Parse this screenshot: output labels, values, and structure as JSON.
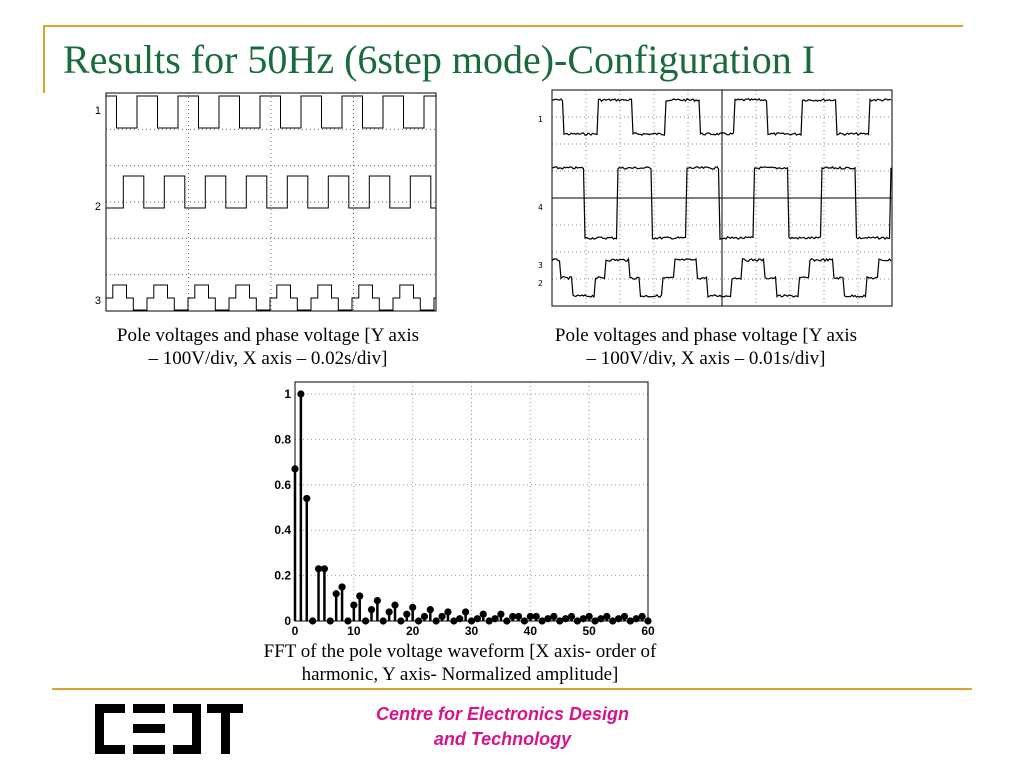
{
  "slide": {
    "title": "Results for 50Hz (6step mode)-Configuration I",
    "accent_color": "#d9a528",
    "title_color": "#1a6b3c"
  },
  "fig_left": {
    "channel_labels": [
      "1",
      "2",
      "3"
    ],
    "caption_line1": "Pole voltages and phase voltage [Y axis",
    "caption_line2": "– 100V/div, X axis – 0.02s/div]"
  },
  "fig_right": {
    "caption_line1": "Pole voltages and phase voltage [Y axis",
    "caption_line2": "– 100V/div, X axis – 0.01s/div]"
  },
  "fft": {
    "caption_line1": "FFT of the pole voltage waveform [X axis- order of",
    "caption_line2": "harmonic, Y axis- Normalized amplitude]"
  },
  "chart_data": {
    "type": "stem",
    "title": "",
    "xlabel": "",
    "ylabel": "",
    "xlim": [
      0,
      60
    ],
    "ylim": [
      0,
      1
    ],
    "grid": true,
    "xticks": [
      "0",
      "10",
      "20",
      "30",
      "40",
      "50",
      "60"
    ],
    "yticks": [
      "0",
      "0.2",
      "0.4",
      "0.6",
      "0.8",
      "1"
    ],
    "x": [
      0,
      1,
      2,
      3,
      4,
      5,
      6,
      7,
      8,
      9,
      10,
      11,
      12,
      13,
      14,
      15,
      16,
      17,
      18,
      19,
      20,
      21,
      22,
      23,
      24,
      25,
      26,
      27,
      28,
      29,
      30,
      31,
      32,
      33,
      34,
      35,
      36,
      37,
      38,
      39,
      40,
      41,
      42,
      43,
      44,
      45,
      46,
      47,
      48,
      49,
      50,
      51,
      52,
      53,
      54,
      55,
      56,
      57,
      58,
      59,
      60
    ],
    "y": [
      0.67,
      1.0,
      0.54,
      0.0,
      0.23,
      0.23,
      0.0,
      0.12,
      0.15,
      0.0,
      0.07,
      0.11,
      0.0,
      0.05,
      0.09,
      0.0,
      0.04,
      0.07,
      0.0,
      0.03,
      0.06,
      0.0,
      0.02,
      0.05,
      0.0,
      0.02,
      0.04,
      0.0,
      0.01,
      0.04,
      0.0,
      0.01,
      0.03,
      0.0,
      0.01,
      0.03,
      0.0,
      0.02,
      0.02,
      0.0,
      0.02,
      0.02,
      0.0,
      0.01,
      0.02,
      0.0,
      0.01,
      0.02,
      0.0,
      0.01,
      0.02,
      0.0,
      0.01,
      0.02,
      0.0,
      0.01,
      0.02,
      0.0,
      0.01,
      0.02,
      0.0
    ]
  },
  "footer": {
    "logo_text": "CEDT",
    "centre_line1": "Centre for Electronics Design",
    "centre_line2": "and Technology"
  }
}
